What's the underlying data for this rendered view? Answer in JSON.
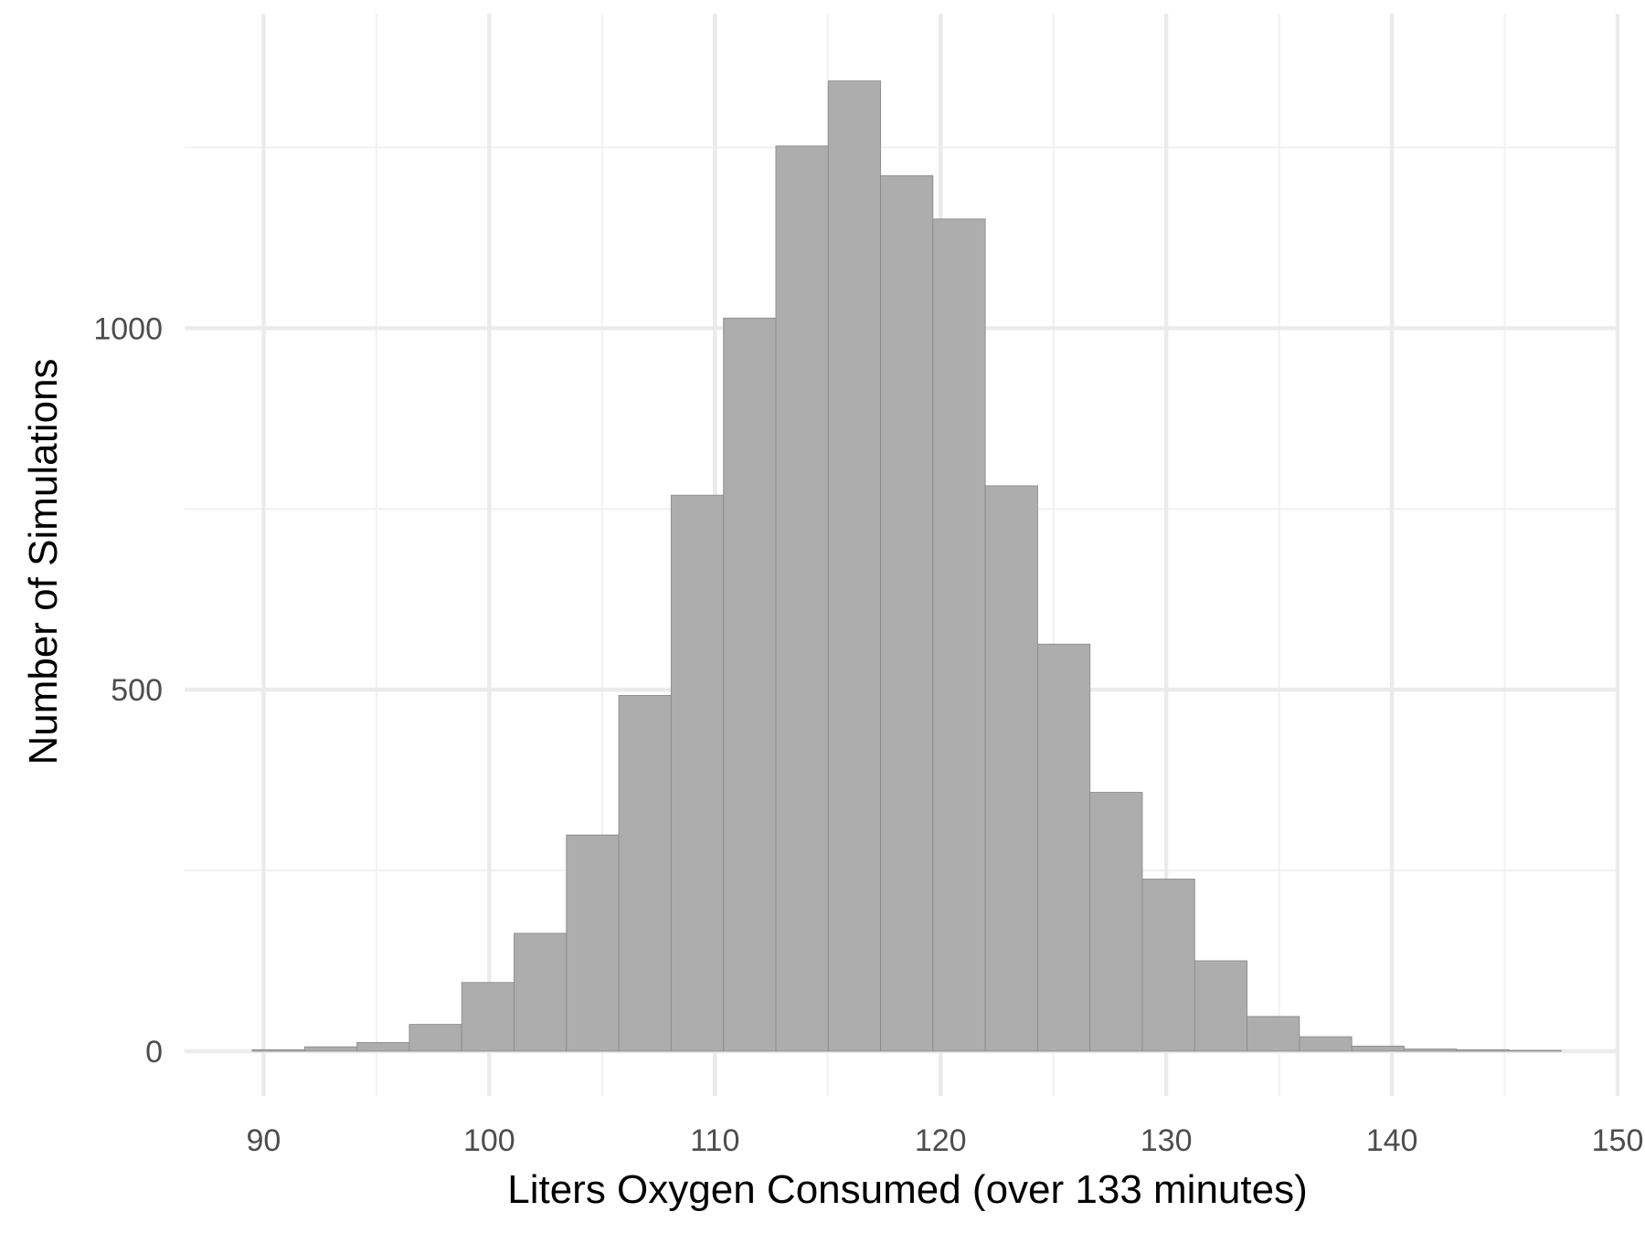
{
  "chart_data": {
    "type": "bar",
    "title": "",
    "xlabel": "Liters Oxygen Consumed (over 133 minutes)",
    "ylabel": "Number of Simulations",
    "xlim": [
      86.5,
      150
    ],
    "ylim": [
      -62,
      1435
    ],
    "x_ticks_major": [
      90,
      100,
      110,
      120,
      130,
      140,
      150
    ],
    "x_ticks_minor": [
      95,
      105,
      115,
      125,
      135,
      145
    ],
    "y_ticks_major": [
      0,
      500,
      1000
    ],
    "y_ticks_minor": [
      250,
      750,
      1250
    ],
    "grid": true,
    "legend": "none",
    "bin_width": 2.32,
    "bin_start": 89.5,
    "values": [
      2,
      6,
      12,
      37,
      95,
      163,
      299,
      492,
      769,
      1014,
      1252,
      1342,
      1211,
      1151,
      782,
      563,
      358,
      238,
      125,
      48,
      20,
      7,
      3,
      2,
      1
    ],
    "colors": {
      "bar_fill": "#aaaaaa",
      "bar_stroke": "#8c8c8c",
      "grid_major": "#ebebeb",
      "grid_minor": "#f2f2f2",
      "tick_text": "#4d4d4d",
      "title_text": "#000000"
    }
  }
}
